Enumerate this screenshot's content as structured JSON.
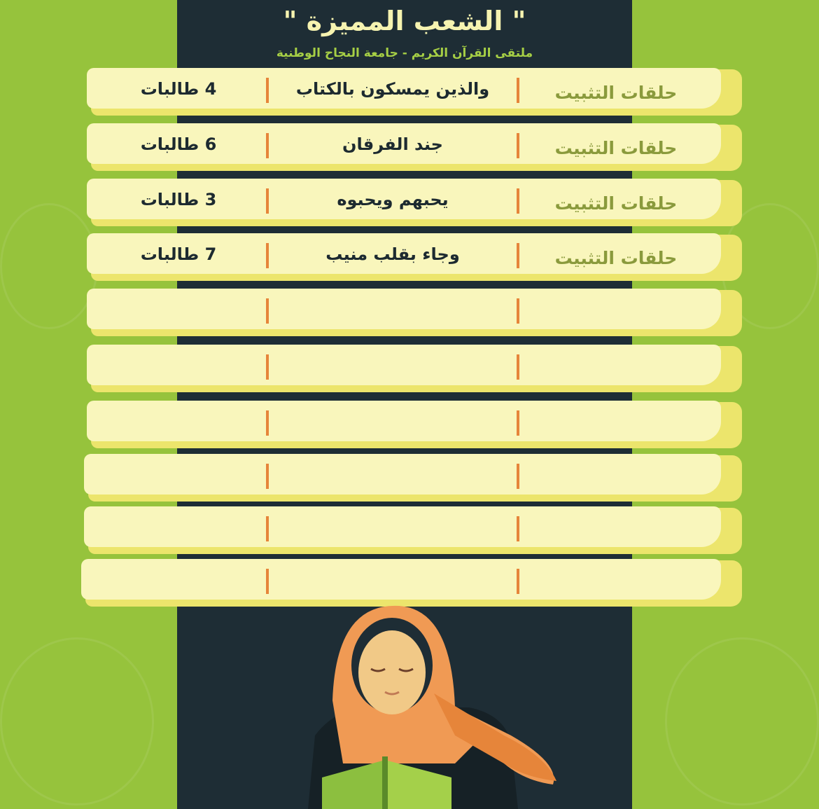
{
  "header": {
    "title": "\" الشعب المميزة \"",
    "subtitle": "ملتقى القرآن الكريم - جامعة النجاح الوطنية"
  },
  "colors": {
    "background": "#96c33c",
    "panel": "#1e2d35",
    "row": "#f9f6bc",
    "divider": "#e6853a",
    "title": "#f6f3b0"
  },
  "rows": [
    {
      "category": "حلقات التثبيت",
      "name": "والذين يمسكون بالكتاب",
      "count": "4 طالبات"
    },
    {
      "category": "حلقات التثبيت",
      "name": "جند الفرقان",
      "count": "6 طالبات"
    },
    {
      "category": "حلقات التثبيت",
      "name": "يحبهم ويحبوه",
      "count": "3 طالبات"
    },
    {
      "category": "حلقات التثبيت",
      "name": "وجاء بقلب منيب",
      "count": "7 طالبات"
    },
    {
      "category": "",
      "name": "",
      "count": ""
    },
    {
      "category": "",
      "name": "",
      "count": ""
    },
    {
      "category": "",
      "name": "",
      "count": ""
    },
    {
      "category": "",
      "name": "",
      "count": ""
    },
    {
      "category": "",
      "name": "",
      "count": ""
    },
    {
      "category": "",
      "name": "",
      "count": ""
    }
  ],
  "illustration": "girl-reading-quran"
}
